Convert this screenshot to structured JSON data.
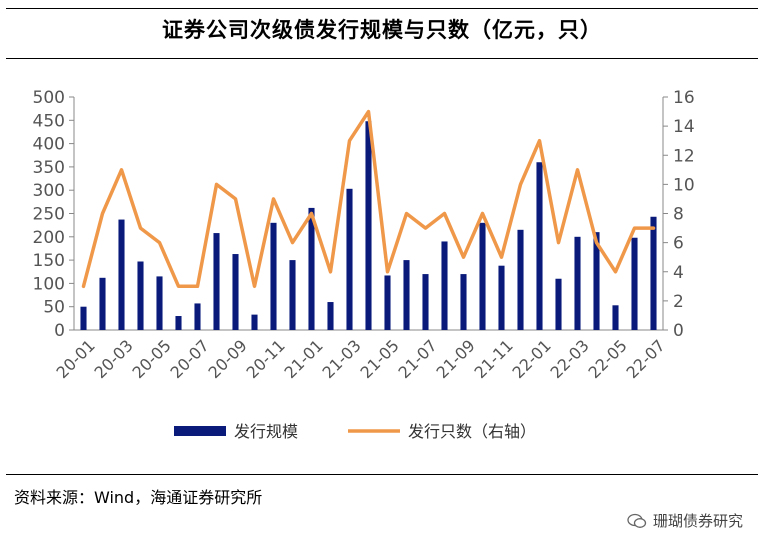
{
  "title": "证券公司次级债发行规模与只数（亿元，只）",
  "source": "资料来源：Wind，海通证券研究所",
  "watermark": "珊瑚债券研究",
  "colors": {
    "bar": "#0a1a7a",
    "line": "#f0984a",
    "axis": "#888888",
    "text": "#555555"
  },
  "chart_data": {
    "type": "bar",
    "categories": [
      "20-01",
      "20-02",
      "20-03",
      "20-04",
      "20-05",
      "20-06",
      "20-07",
      "20-08",
      "20-09",
      "20-10",
      "20-11",
      "20-12",
      "21-01",
      "21-02",
      "21-03",
      "21-04",
      "21-05",
      "21-06",
      "21-07",
      "21-08",
      "21-09",
      "21-10",
      "21-11",
      "21-12",
      "22-01",
      "22-02",
      "22-03",
      "22-04",
      "22-05",
      "22-06",
      "22-07"
    ],
    "x_tick_labels": [
      "20-01",
      "20-03",
      "20-05",
      "20-07",
      "20-09",
      "20-11",
      "21-01",
      "21-03",
      "21-05",
      "21-07",
      "21-09",
      "21-11",
      "22-01",
      "22-03",
      "22-05",
      "22-07"
    ],
    "series": [
      {
        "name": "发行规模",
        "type": "bar",
        "axis": "left",
        "values": [
          50,
          112,
          237,
          147,
          115,
          30,
          57,
          208,
          163,
          33,
          230,
          150,
          262,
          60,
          303,
          448,
          117,
          150,
          120,
          190,
          120,
          230,
          138,
          215,
          360,
          110,
          200,
          210,
          53,
          198,
          243
        ]
      },
      {
        "name": "发行只数（右轴）",
        "type": "line",
        "axis": "right",
        "values": [
          3,
          8,
          11,
          7,
          6,
          3,
          3,
          10,
          9,
          3,
          9,
          6,
          8,
          4,
          13,
          15,
          4,
          8,
          7,
          8,
          5,
          8,
          5,
          10,
          13,
          6,
          11,
          6,
          4,
          7,
          7
        ]
      }
    ],
    "ylim_left": [
      0,
      500
    ],
    "yticks_left": [
      0,
      50,
      100,
      150,
      200,
      250,
      300,
      350,
      400,
      450,
      500
    ],
    "ylim_right": [
      0,
      16
    ],
    "yticks_right": [
      0,
      2,
      4,
      6,
      8,
      10,
      12,
      14,
      16
    ],
    "legend_position": "bottom",
    "grid": false
  }
}
